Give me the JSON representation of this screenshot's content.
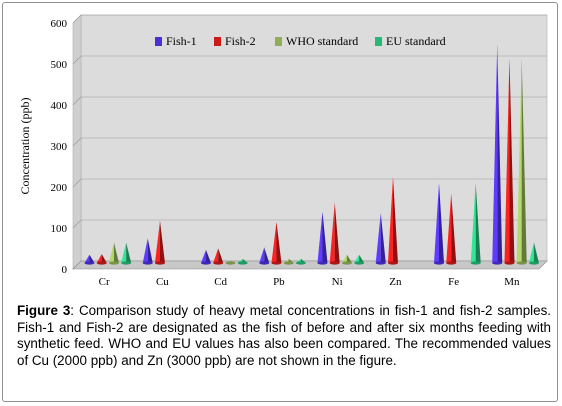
{
  "chart_data": {
    "type": "bar",
    "bar_style": "cone",
    "categories": [
      "Cr",
      "Cu",
      "Cd",
      "Pb",
      "Ni",
      "Zn",
      "Fe",
      "Mn"
    ],
    "series": [
      {
        "name": "Fish-1",
        "color": "#4b2fd6",
        "values": [
          20,
          60,
          32,
          38,
          125,
          122,
          195,
          535
        ]
      },
      {
        "name": "Fish-2",
        "color": "#cc1a1a",
        "values": [
          22,
          103,
          36,
          100,
          148,
          210,
          170,
          500
        ]
      },
      {
        "name": "WHO standard",
        "color": "#8fae55",
        "values": [
          50,
          0,
          3,
          10,
          20,
          0,
          0,
          500
        ]
      },
      {
        "name": "EU standard",
        "color": "#27b876",
        "values": [
          50,
          0,
          10,
          10,
          20,
          0,
          195,
          50
        ]
      }
    ],
    "ylabel": "Concentration (ppb)",
    "ylim": [
      0,
      600
    ],
    "yticks": [
      0,
      100,
      200,
      300,
      400,
      500,
      600
    ],
    "grid": true,
    "legend_position": "top"
  },
  "caption": {
    "label": "Figure 3",
    "text": ": Comparison study of heavy metal concentrations in fish-1 and fish-2 samples. Fish-1 and Fish-2 are designated as the fish of before and after six months feeding with synthetic feed. WHO and EU values has also been compared. The recommended values of Cu (2000 ppb) and Zn (3000 ppb) are not shown in the figure."
  }
}
